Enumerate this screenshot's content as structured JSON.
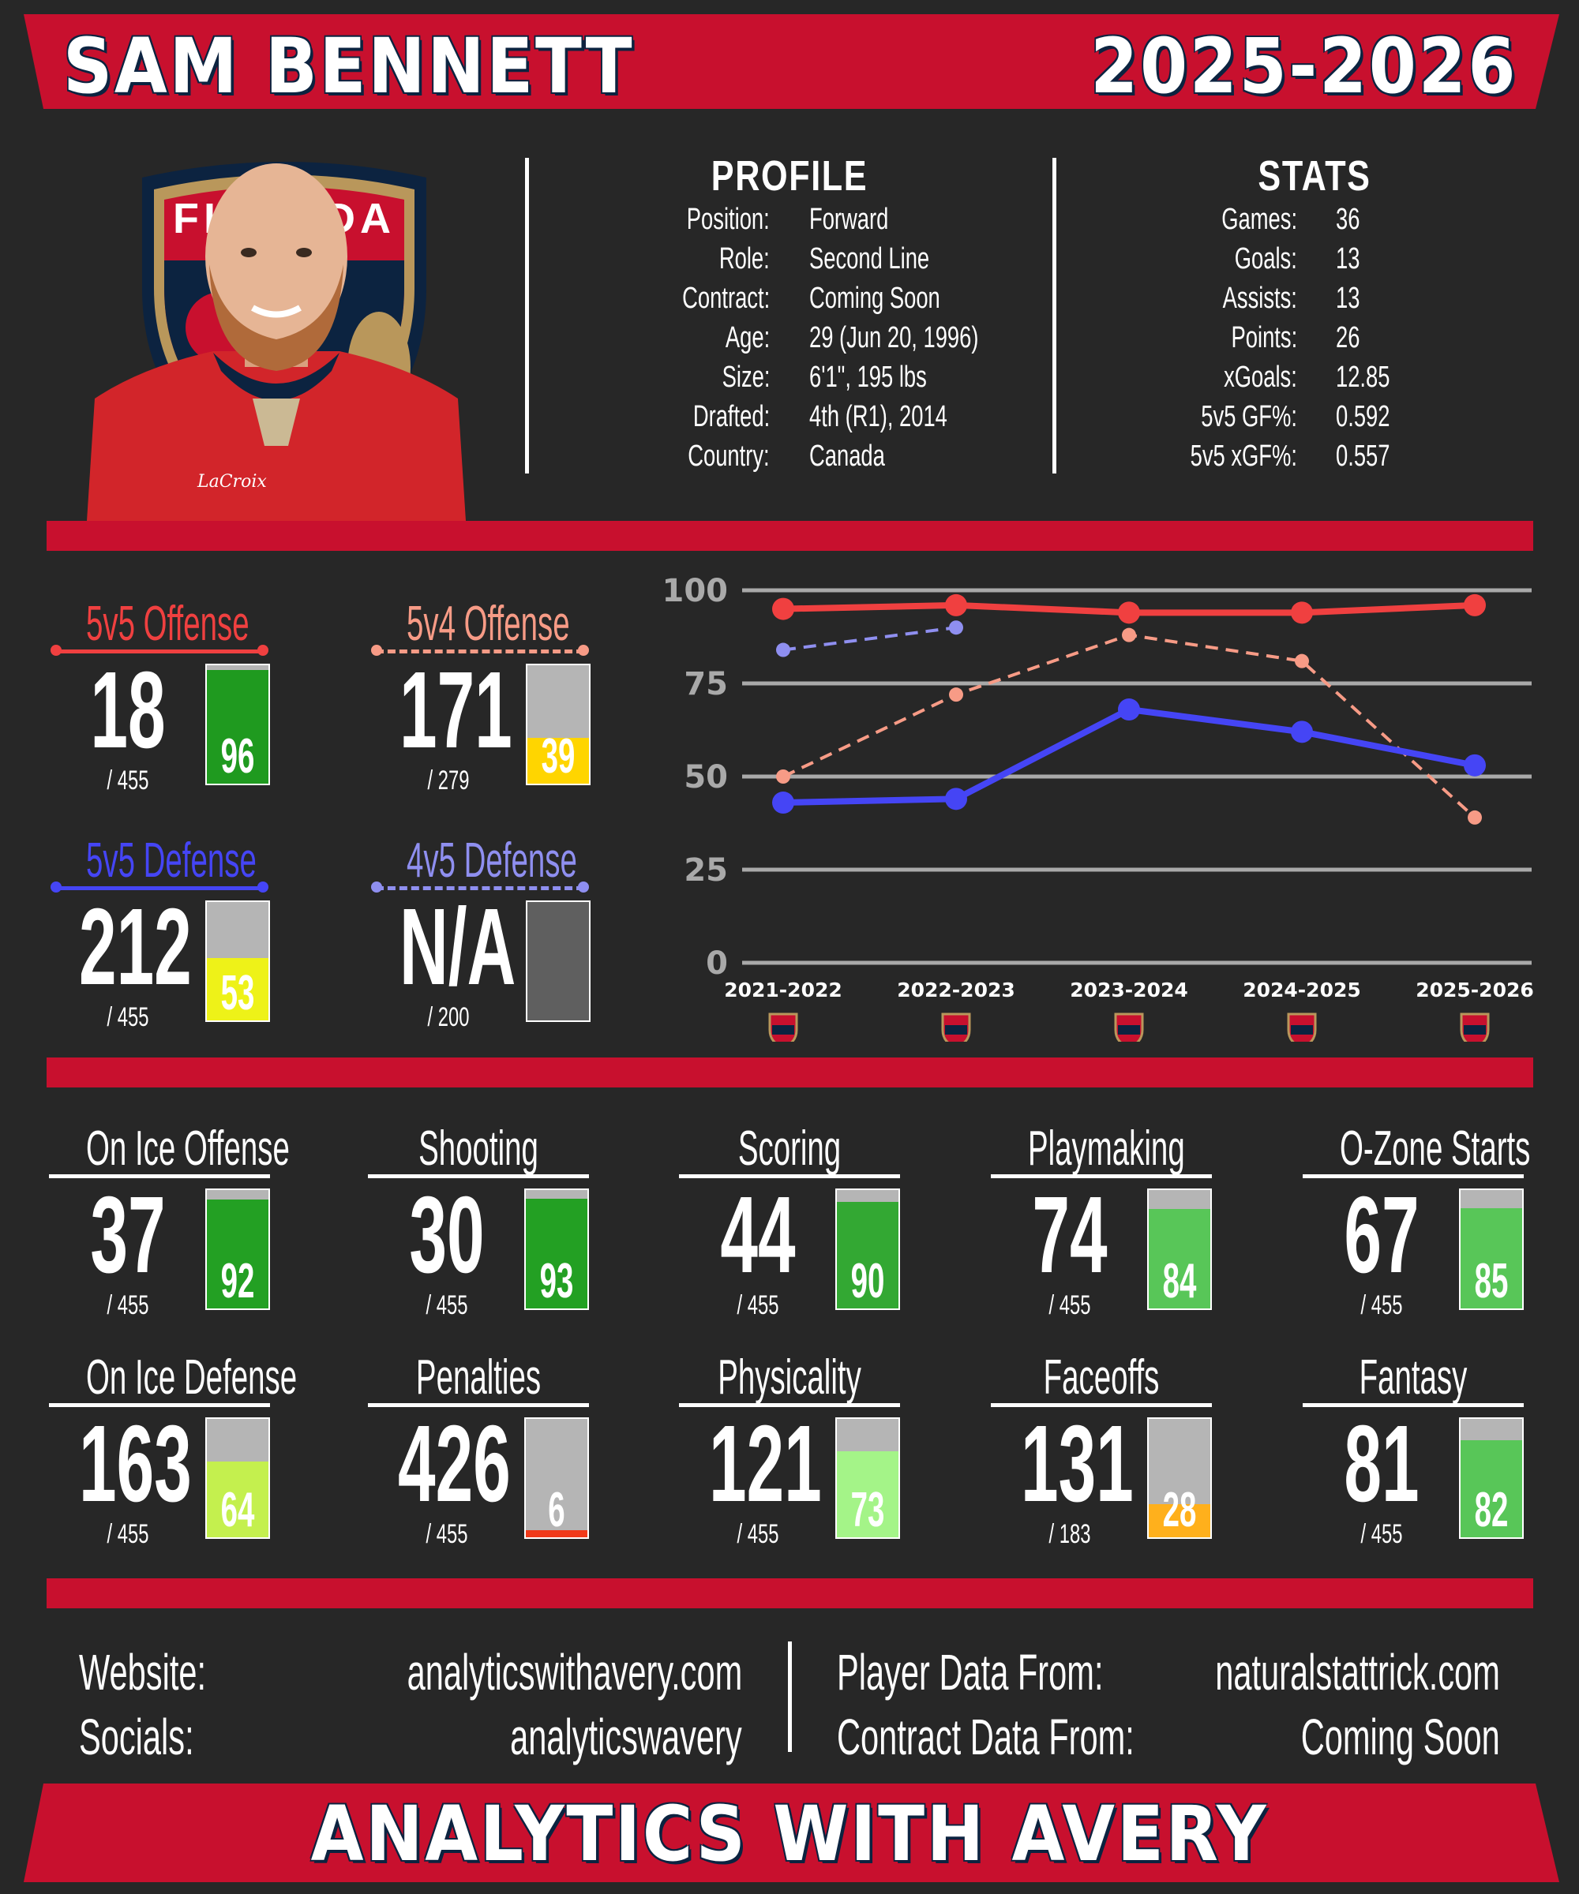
{
  "header": {
    "player_name": "SAM BENNETT",
    "season": "2025-2026"
  },
  "colors": {
    "red": "#c8102e",
    "navy": "#0c2340",
    "background": "#272727"
  },
  "profile": {
    "title": "PROFILE",
    "rows": [
      {
        "label": "Position:",
        "value": "Forward"
      },
      {
        "label": "Role:",
        "value": "Second Line"
      },
      {
        "label": "Contract:",
        "value": "Coming Soon"
      },
      {
        "label": "Age:",
        "value": "29 (Jun 20, 1996)"
      },
      {
        "label": "Size:",
        "value": "6'1\", 195 lbs"
      },
      {
        "label": "Drafted:",
        "value": "4th (R1), 2014"
      },
      {
        "label": "Country:",
        "value": "Canada"
      }
    ]
  },
  "stats": {
    "title": "STATS",
    "rows": [
      {
        "label": "Games:",
        "value": "36"
      },
      {
        "label": "Goals:",
        "value": "13"
      },
      {
        "label": "Assists:",
        "value": "13"
      },
      {
        "label": "Points:",
        "value": "26"
      },
      {
        "label": "xGoals:",
        "value": "12.85"
      },
      {
        "label": "5v5 GF%:",
        "value": "0.592"
      },
      {
        "label": "5v5 xGF%:",
        "value": "0.557"
      }
    ]
  },
  "logo": {
    "text": "FLORIDA"
  },
  "special_teams": [
    {
      "title": "5v5 Offense",
      "rank": "18",
      "total": "/ 455",
      "pct": "96",
      "pct_value": 96,
      "fill": "#1f9a1f",
      "color": "#f04040",
      "dashed": false
    },
    {
      "title": "5v4 Offense",
      "rank": "171",
      "total": "/ 279",
      "pct": "39",
      "pct_value": 39,
      "fill": "#ffd500",
      "color": "#f79b86",
      "dashed": true
    },
    {
      "title": "5v5 Defense",
      "rank": "212",
      "total": "/ 455",
      "pct": "53",
      "pct_value": 53,
      "fill": "#eef218",
      "color": "#4545f5",
      "dashed": false
    },
    {
      "title": "4v5 Defense",
      "rank": "N/A",
      "total": "/ 200",
      "pct": "",
      "pct_value": 0,
      "fill": "#5f5f5f",
      "color": "#8f8ff0",
      "dashed": true
    }
  ],
  "chart_data": {
    "type": "line",
    "x": [
      "2021-2022",
      "2022-2023",
      "2023-2024",
      "2024-2025",
      "2025-2026"
    ],
    "ylim": [
      0,
      100
    ],
    "yticks": [
      0,
      25,
      50,
      75,
      100
    ],
    "grid": true,
    "series": [
      {
        "name": "5v5 Offense",
        "values": [
          95,
          96,
          94,
          94,
          96
        ],
        "color": "#f04040",
        "dashed": false
      },
      {
        "name": "5v4 Offense",
        "values": [
          50,
          72,
          88,
          81,
          39
        ],
        "color": "#f79b86",
        "dashed": true
      },
      {
        "name": "5v5 Defense",
        "values": [
          43,
          44,
          68,
          62,
          53
        ],
        "color": "#4545f5",
        "dashed": false
      },
      {
        "name": "4v5 Defense",
        "values": [
          84,
          90,
          null,
          null,
          null
        ],
        "color": "#8f8ff0",
        "dashed": true
      }
    ]
  },
  "metrics": [
    {
      "title": "On Ice Offense",
      "rank": "37",
      "total": "/ 455",
      "pct": "92",
      "pct_value": 92,
      "fill": "#23a023"
    },
    {
      "title": "Shooting",
      "rank": "30",
      "total": "/ 455",
      "pct": "93",
      "pct_value": 93,
      "fill": "#23a023"
    },
    {
      "title": "Scoring",
      "rank": "44",
      "total": "/ 455",
      "pct": "90",
      "pct_value": 90,
      "fill": "#33a833"
    },
    {
      "title": "Playmaking",
      "rank": "74",
      "total": "/ 455",
      "pct": "84",
      "pct_value": 84,
      "fill": "#58c658"
    },
    {
      "title": "O-Zone Starts",
      "rank": "67",
      "total": "/ 455",
      "pct": "85",
      "pct_value": 85,
      "fill": "#58c658"
    },
    {
      "title": "On Ice Defense",
      "rank": "163",
      "total": "/ 455",
      "pct": "64",
      "pct_value": 64,
      "fill": "#c4f04e"
    },
    {
      "title": "Penalties",
      "rank": "426",
      "total": "/ 455",
      "pct": "6",
      "pct_value": 6,
      "fill": "#f03a1a"
    },
    {
      "title": "Physicality",
      "rank": "121",
      "total": "/ 455",
      "pct": "73",
      "pct_value": 73,
      "fill": "#a4f488"
    },
    {
      "title": "Faceoffs",
      "rank": "131",
      "total": "/ 183",
      "pct": "28",
      "pct_value": 28,
      "fill": "#ffb01c"
    },
    {
      "title": "Fantasy",
      "rank": "81",
      "total": "/ 455",
      "pct": "82",
      "pct_value": 82,
      "fill": "#58c658"
    }
  ],
  "footer": {
    "website_label": "Website:",
    "website": "analyticswithavery.com",
    "socials_label": "Socials:",
    "socials": "analyticswavery",
    "player_data_label": "Player Data From:",
    "player_data": "naturalstattrick.com",
    "contract_data_label": "Contract Data From:",
    "contract_data": "Coming Soon",
    "brand": "ANALYTICS WITH AVERY"
  }
}
